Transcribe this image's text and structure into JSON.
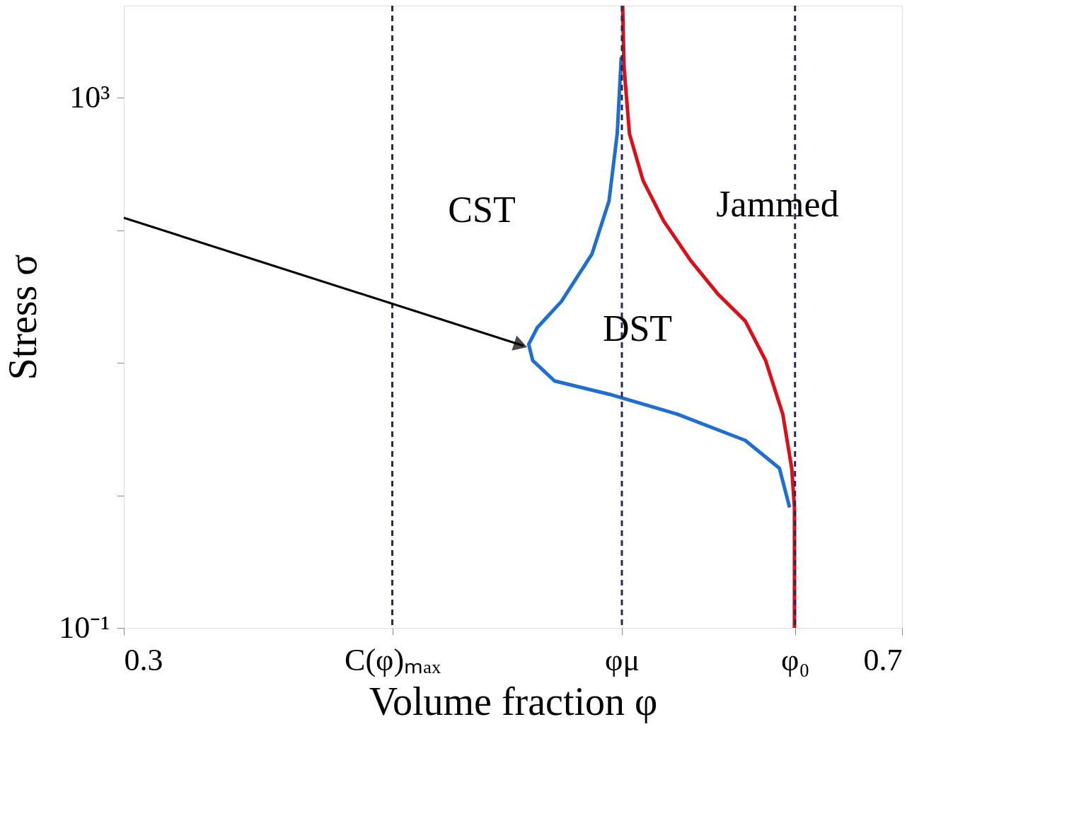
{
  "chart_data": {
    "type": "line",
    "xlabel": "Volume fraction φ",
    "ylabel": "Stress σ",
    "log": "y",
    "grid": false,
    "marker": "none",
    "line_style": "solid",
    "xlim": [
      0.3,
      0.7
    ],
    "ylim": [
      0.1,
      4950
    ],
    "xticks": [
      0.3,
      {
        "value": 0.438,
        "label": "C(φ)ₘₐₓ"
      },
      {
        "value": 0.556,
        "label": "φμ"
      },
      {
        "value": 0.645,
        "label": "φ₀"
      },
      0.7
    ],
    "yticks": [
      {
        "value": 0.1,
        "label": "10⁻¹"
      },
      {
        "value": 1,
        "label": null
      },
      {
        "value": 10,
        "label": null
      },
      {
        "value": 100,
        "label": null
      },
      {
        "value": 1000,
        "label": "10³"
      }
    ],
    "series": [
      {
        "color": "#1f6fd0",
        "x": [
          0.5557,
          0.5536,
          0.5494,
          0.5406,
          0.5249,
          0.5126,
          0.5081,
          0.5102,
          0.5214,
          0.5494,
          0.5844,
          0.6194,
          0.637,
          0.6422
        ],
        "values": [
          2028,
          535,
          167,
          66,
          29,
          18.5,
          13.8,
          10.4,
          7.3,
          5.8,
          4.1,
          2.6,
          1.6,
          0.81
        ]
      },
      {
        "color": "#d8101c",
        "x": [
          0.5564,
          0.5571,
          0.5599,
          0.5669,
          0.5774,
          0.5914,
          0.6054,
          0.6194,
          0.6299,
          0.6387,
          0.6433,
          0.6447,
          0.6447
        ],
        "values": [
          4950,
          1710,
          535,
          237,
          118,
          59,
          33,
          20.7,
          10.4,
          4.1,
          1.6,
          0.81,
          0.1
        ]
      }
    ],
    "ref_lines": [
      {
        "axis": "x",
        "value": 0.438,
        "color": "#2a2a50",
        "line_style": "dashed"
      },
      {
        "axis": "x",
        "value": 0.556,
        "color": "#2a2a50",
        "line_style": "dashed"
      },
      {
        "axis": "x",
        "value": 0.645,
        "color": "#2a2a50",
        "line_style": "dashed"
      }
    ],
    "annotations": [
      "CST",
      "DST",
      "Jammed"
    ]
  }
}
